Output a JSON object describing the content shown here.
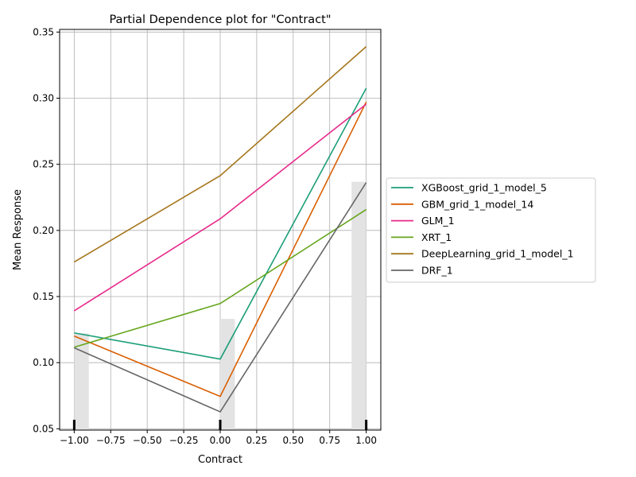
{
  "chart_data": {
    "type": "line",
    "title": "Partial Dependence plot for \"Contract\"",
    "xlabel": "Contract",
    "ylabel": "Mean Response",
    "xlim": [
      -1.1,
      1.1
    ],
    "ylim": [
      0.049,
      0.352
    ],
    "x_ticks": [
      -1.0,
      -0.75,
      -0.5,
      -0.25,
      0.0,
      0.25,
      0.5,
      0.75,
      1.0
    ],
    "x_tick_labels": [
      "−1.00",
      "−0.75",
      "−0.50",
      "−0.25",
      "0.00",
      "0.25",
      "0.50",
      "0.75",
      "1.00"
    ],
    "y_ticks": [
      0.05,
      0.1,
      0.15,
      0.2,
      0.25,
      0.3,
      0.35
    ],
    "y_tick_labels": [
      "0.05",
      "0.10",
      "0.15",
      "0.20",
      "0.25",
      "0.30",
      "0.35"
    ],
    "grid": true,
    "legend_position": "outside-right",
    "x": [
      -1.0,
      0.0,
      1.0
    ],
    "series": [
      {
        "name": "XGBoost_grid_1_model_5",
        "color": "#1b9e77",
        "values": [
          0.1225,
          0.1027,
          0.3075
        ]
      },
      {
        "name": "GBM_grid_1_model_14",
        "color": "#d95f02",
        "values": [
          0.1201,
          0.0745,
          0.2971
        ]
      },
      {
        "name": "GLM_1",
        "color": "#e7298a",
        "values": [
          0.1392,
          0.2088,
          0.2955
        ]
      },
      {
        "name": "XRT_1",
        "color": "#66a61e",
        "values": [
          0.1117,
          0.1447,
          0.2158
        ]
      },
      {
        "name": "DeepLearning_grid_1_model_1",
        "color": "#a6761d",
        "values": [
          0.1761,
          0.2414,
          0.339
        ]
      },
      {
        "name": "DRF_1",
        "color": "#666666",
        "values": [
          0.1112,
          0.0628,
          0.2362
        ]
      }
    ],
    "histogram": {
      "color": "#e3e3e3",
      "bins": [
        {
          "x": -0.95,
          "value": 0.1222
        },
        {
          "x": 0.05,
          "value": 0.1331
        },
        {
          "x": 0.95,
          "value": 0.2368
        }
      ]
    },
    "rug_x": [
      -1.0,
      0.0,
      1.0
    ]
  }
}
